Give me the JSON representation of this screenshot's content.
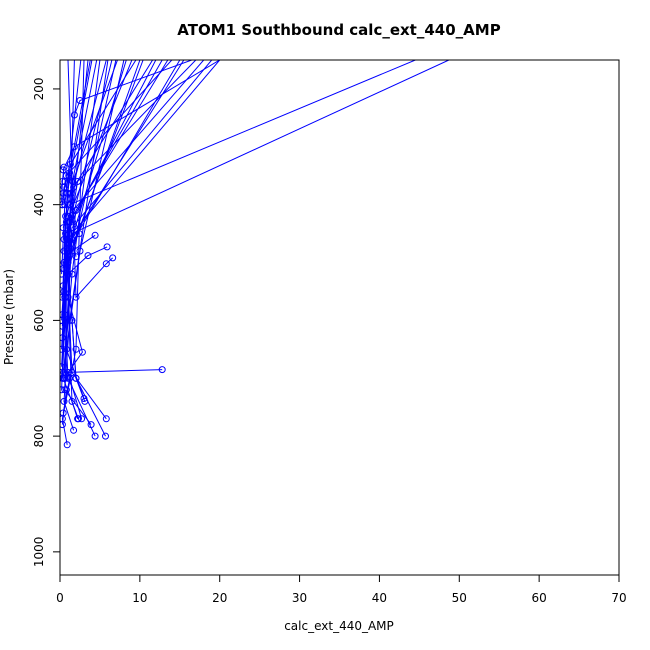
{
  "chart_data": {
    "type": "line",
    "title": "ATOM1 Southbound calc_ext_440_AMP",
    "xlabel": "calc_ext_440_AMP",
    "ylabel": "Pressure (mbar)",
    "xlim": [
      0,
      70
    ],
    "ylim": [
      1040,
      150
    ],
    "y_reversed": true,
    "x_ticks": [
      0,
      10,
      20,
      30,
      40,
      50,
      60,
      70
    ],
    "y_ticks": [
      200,
      400,
      600,
      800,
      1000
    ],
    "grid": false,
    "legend": "none",
    "color": "#0000ff",
    "marker": "open-circle",
    "series": [
      {
        "x": [
          0.9,
          0.3,
          2.0,
          3.0
        ],
        "y": [
          815,
          770,
          650,
          150
        ]
      },
      {
        "x": [
          1.7,
          0.5,
          1.2,
          6.0
        ],
        "y": [
          790,
          740,
          600,
          150
        ]
      },
      {
        "x": [
          2.3,
          0.4,
          1.5,
          5.0
        ],
        "y": [
          770,
          700,
          520,
          150
        ]
      },
      {
        "x": [
          3.0,
          0.8,
          2.5,
          8.0
        ],
        "y": [
          735,
          650,
          480,
          150
        ]
      },
      {
        "x": [
          4.4,
          1.0,
          0.5,
          3.5
        ],
        "y": [
          800,
          700,
          550,
          150
        ]
      },
      {
        "x": [
          5.7,
          2.0,
          1.0,
          10.0
        ],
        "y": [
          800,
          700,
          500,
          150
        ]
      },
      {
        "x": [
          5.8,
          1.5,
          0.7,
          12.0
        ],
        "y": [
          770,
          690,
          450,
          150
        ]
      },
      {
        "x": [
          3.9,
          0.6,
          0.9,
          15.0
        ],
        "y": [
          780,
          720,
          480,
          150
        ]
      },
      {
        "x": [
          12.8,
          0.5,
          1.5,
          20.0
        ],
        "y": [
          685,
          690,
          450,
          150
        ]
      },
      {
        "x": [
          0.5,
          2.8,
          1.0,
          1.8
        ],
        "y": [
          700,
          655,
          560,
          150
        ]
      },
      {
        "x": [
          6.6,
          5.8,
          2.0,
          1.0
        ],
        "y": [
          492,
          502,
          560,
          150
        ]
      },
      {
        "x": [
          5.9,
          3.5,
          1.0,
          7.0
        ],
        "y": [
          473,
          488,
          520,
          150
        ]
      },
      {
        "x": [
          4.4,
          1.5,
          0.8,
          9.0
        ],
        "y": [
          453,
          480,
          430,
          150
        ]
      },
      {
        "x": [
          0.4,
          1.2,
          44.5
        ],
        "y": [
          440,
          400,
          150
        ]
      },
      {
        "x": [
          0.6,
          1.5,
          48.7
        ],
        "y": [
          700,
          450,
          150
        ]
      },
      {
        "x": [
          0.3,
          0.8,
          14.0
        ],
        "y": [
          400,
          350,
          150
        ]
      },
      {
        "x": [
          0.2,
          1.0,
          18.0
        ],
        "y": [
          600,
          420,
          150
        ]
      },
      {
        "x": [
          0.4,
          1.8,
          20.0
        ],
        "y": [
          340,
          300,
          150
        ]
      },
      {
        "x": [
          1.8,
          2.5,
          16.5
        ],
        "y": [
          245,
          220,
          150
        ]
      },
      {
        "x": [
          0.3,
          0.9,
          4.0
        ],
        "y": [
          560,
          380,
          150
        ]
      },
      {
        "x": [
          0.2,
          0.6,
          2.6
        ],
        "y": [
          520,
          400,
          150
        ]
      },
      {
        "x": [
          0.5,
          1.1,
          3.8
        ],
        "y": [
          480,
          350,
          150
        ]
      },
      {
        "x": [
          0.3,
          0.7,
          4.6
        ],
        "y": [
          610,
          420,
          150
        ]
      },
      {
        "x": [
          0.6,
          1.4,
          5.8
        ],
        "y": [
          590,
          380,
          150
        ]
      },
      {
        "x": [
          0.2,
          0.9,
          6.5
        ],
        "y": [
          650,
          460,
          150
        ]
      },
      {
        "x": [
          0.4,
          1.6,
          7.2
        ],
        "y": [
          540,
          360,
          150
        ]
      },
      {
        "x": [
          0.3,
          1.0,
          8.3
        ],
        "y": [
          700,
          480,
          150
        ]
      },
      {
        "x": [
          0.5,
          1.3,
          9.5
        ],
        "y": [
          460,
          330,
          150
        ]
      },
      {
        "x": [
          0.2,
          0.8,
          10.4
        ],
        "y": [
          720,
          500,
          150
        ]
      },
      {
        "x": [
          0.4,
          1.7,
          11.6
        ],
        "y": [
          510,
          370,
          150
        ]
      },
      {
        "x": [
          0.3,
          1.2,
          12.8
        ],
        "y": [
          630,
          430,
          150
        ]
      },
      {
        "x": [
          0.6,
          2.0,
          13.5
        ],
        "y": [
          560,
          410,
          150
        ]
      },
      {
        "x": [
          0.2,
          1.0,
          15.5
        ],
        "y": [
          680,
          470,
          150
        ]
      },
      {
        "x": [
          0.5,
          2.2,
          17.0
        ],
        "y": [
          500,
          360,
          150
        ]
      },
      {
        "x": [
          0.3,
          1.5,
          19.0
        ],
        "y": [
          590,
          440,
          150
        ]
      },
      {
        "x": [
          2.2,
          1.5,
          1.0
        ],
        "y": [
          770,
          740,
          560
        ]
      },
      {
        "x": [
          3.1,
          2.0,
          1.5
        ],
        "y": [
          740,
          700,
          600
        ]
      },
      {
        "x": [
          2.7,
          1.0
        ],
        "y": [
          770,
          690
        ]
      },
      {
        "x": [
          0.4,
          1.2
        ],
        "y": [
          760,
          700
        ]
      },
      {
        "x": [
          0.3,
          0.8
        ],
        "y": [
          780,
          720
        ]
      },
      {
        "x": [
          2.0,
          1.0,
          0.4
        ],
        "y": [
          490,
          420,
          380
        ]
      },
      {
        "x": [
          2.4,
          1.3,
          0.6
        ],
        "y": [
          450,
          400,
          360
        ]
      },
      {
        "x": [
          1.2,
          0.5,
          0.3
        ],
        "y": [
          345,
          370,
          400
        ]
      },
      {
        "x": [
          0.5,
          0.3,
          0.2
        ],
        "y": [
          335,
          360,
          395
        ]
      }
    ]
  }
}
